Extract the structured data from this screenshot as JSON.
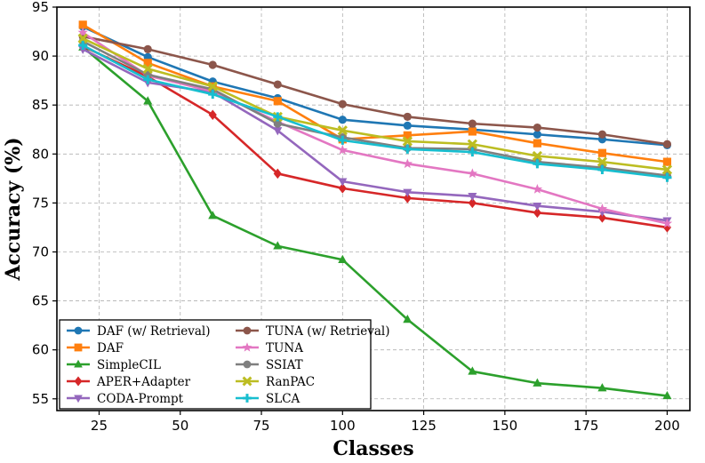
{
  "chart_data": {
    "type": "line",
    "title": "",
    "xlabel": "Classes",
    "ylabel": "Accuracy (%)",
    "x": [
      20,
      40,
      60,
      80,
      100,
      120,
      140,
      160,
      180,
      200
    ],
    "xlim": [
      12,
      207
    ],
    "ylim": [
      53.8,
      95
    ],
    "xticks": [
      25,
      50,
      75,
      100,
      125,
      150,
      175,
      200
    ],
    "yticks": [
      55,
      60,
      65,
      70,
      75,
      80,
      85,
      90,
      95
    ],
    "grid": true,
    "legend_position": "lower-left",
    "series": [
      {
        "name": "DAF (w/ Retrieval)",
        "color": "#1f77b4",
        "marker": "circle",
        "values": [
          93.0,
          89.9,
          87.4,
          85.7,
          83.5,
          82.9,
          82.5,
          82.0,
          81.5,
          80.9
        ]
      },
      {
        "name": "DAF",
        "color": "#ff7f0e",
        "marker": "square",
        "values": [
          93.2,
          89.3,
          86.9,
          85.4,
          81.5,
          81.9,
          82.3,
          81.1,
          80.1,
          79.2
        ]
      },
      {
        "name": "SimpleCIL",
        "color": "#2ca02c",
        "marker": "triangle-up",
        "values": [
          90.9,
          85.4,
          73.7,
          70.6,
          69.2,
          63.1,
          57.8,
          56.6,
          56.1,
          55.3
        ]
      },
      {
        "name": "APER+Adapter",
        "color": "#d62728",
        "marker": "diamond",
        "values": [
          91.0,
          87.9,
          84.0,
          78.0,
          76.5,
          75.5,
          75.0,
          74.0,
          73.5,
          72.5
        ]
      },
      {
        "name": "CODA-Prompt",
        "color": "#9467bd",
        "marker": "triangle-down",
        "values": [
          90.7,
          87.3,
          86.3,
          82.4,
          77.2,
          76.1,
          75.7,
          74.7,
          74.1,
          73.2
        ]
      },
      {
        "name": "TUNA (w/ Retrieval)",
        "color": "#8c564b",
        "marker": "circle",
        "values": [
          92.0,
          90.7,
          89.1,
          87.1,
          85.1,
          83.8,
          83.1,
          82.7,
          82.0,
          81.0
        ]
      },
      {
        "name": "TUNA",
        "color": "#e377c2",
        "marker": "star",
        "values": [
          92.4,
          88.0,
          86.4,
          83.3,
          80.4,
          79.0,
          78.0,
          76.4,
          74.4,
          72.9
        ]
      },
      {
        "name": "SSIAT",
        "color": "#7f7f7f",
        "marker": "circle",
        "values": [
          91.5,
          88.1,
          86.6,
          83.1,
          81.7,
          80.6,
          80.5,
          79.2,
          78.6,
          77.8
        ]
      },
      {
        "name": "RanPAC",
        "color": "#bcbd22",
        "marker": "x",
        "values": [
          91.8,
          88.7,
          86.9,
          83.8,
          82.4,
          81.3,
          81.0,
          79.8,
          79.2,
          78.4
        ]
      },
      {
        "name": "SLCA",
        "color": "#17becf",
        "marker": "plus",
        "values": [
          91.1,
          87.6,
          86.1,
          83.8,
          81.4,
          80.5,
          80.2,
          79.0,
          78.4,
          77.6
        ]
      }
    ]
  }
}
